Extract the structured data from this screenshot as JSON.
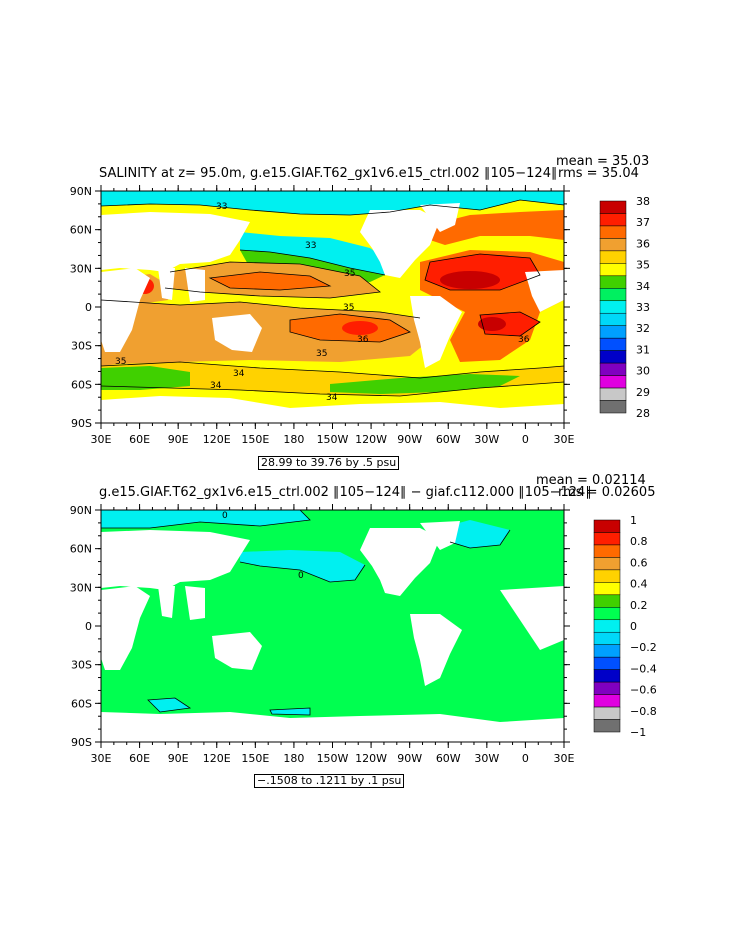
{
  "panel1": {
    "title": "SALINITY at z=  95.0m, g.e15.GIAF.T62_gx1v6.e15_ctrl.002 ∥105−124∥",
    "mean": "mean = 35.03",
    "rms": "rms = 35.04",
    "range": "28.99 to 39.76 by .5 psu",
    "colorbar": {
      "labels": [
        "38",
        "37",
        "36",
        "35",
        "34",
        "33",
        "32",
        "31",
        "30",
        "29",
        "28"
      ],
      "colors": [
        "#c80000",
        "#ff1e00",
        "#ff6a00",
        "#f0a030",
        "#ffd200",
        "#ffff00",
        "#40d000",
        "#00f060",
        "#00f0f0",
        "#00d8f8",
        "#00a0ff",
        "#0050ff",
        "#0000c8",
        "#8000c0",
        "#e000e0",
        "#c8c8c8",
        "#707070"
      ]
    },
    "contour_labels": [
      "33",
      "33",
      "35",
      "35",
      "35",
      "36",
      "36",
      "35",
      "34",
      "34",
      "34",
      "36"
    ]
  },
  "panel2": {
    "title": "g.e15.GIAF.T62_gx1v6.e15_ctrl.002 ∥105−124∥ − giaf.c112.000 ∥105−124∥",
    "mean": "mean = 0.02114",
    "rms": "rms = 0.02605",
    "range": "−.1508 to .1211 by .1 psu",
    "colorbar": {
      "labels": [
        "1",
        "0.8",
        "0.6",
        "0.4",
        "0.2",
        "0",
        "−0.2",
        "−0.4",
        "−0.6",
        "−0.8",
        "−1"
      ],
      "colors": [
        "#c80000",
        "#ff1e00",
        "#ff6a00",
        "#f0a030",
        "#ffd200",
        "#ffff00",
        "#40d000",
        "#00ff50",
        "#00f0f0",
        "#00d8f8",
        "#00a0ff",
        "#0050ff",
        "#0000c8",
        "#8000c0",
        "#e000e0",
        "#c8c8c8",
        "#707070"
      ]
    },
    "contour_labels": [
      "0",
      "0"
    ]
  },
  "axes": {
    "lat_labels": [
      "90N",
      "60N",
      "30N",
      "0",
      "30S",
      "60S",
      "90S"
    ],
    "lon_labels": [
      "30E",
      "60E",
      "90E",
      "120E",
      "150E",
      "180",
      "150W",
      "120W",
      "90W",
      "60W",
      "30W",
      "0",
      "30E"
    ]
  },
  "legend_colors": {
    "red": "#c80000",
    "orange": "#ff6a00",
    "lightorange": "#f0a030",
    "yellow": "#ffff00",
    "green": "#40d000",
    "brightgreen": "#00f060",
    "cyan": "#00f0f0",
    "land": "#ffffff"
  }
}
